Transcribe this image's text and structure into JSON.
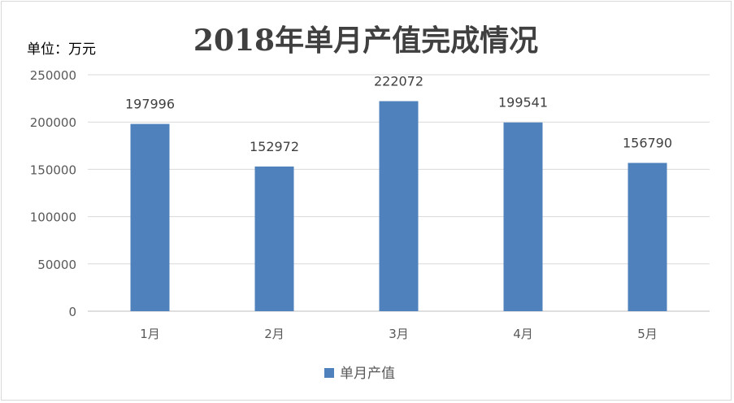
{
  "chart_data": {
    "type": "bar",
    "title": "2018年单月产值完成情况",
    "unit_label": "单位：万元",
    "categories": [
      "1月",
      "2月",
      "3月",
      "4月",
      "5月"
    ],
    "series": [
      {
        "name": "单月产值",
        "values": [
          197996,
          152972,
          222072,
          199541,
          156790
        ],
        "color": "#4f81bd"
      }
    ],
    "ylim": [
      0,
      250000
    ],
    "yticks": [
      "0",
      "50000",
      "100000",
      "150000",
      "200000",
      "250000"
    ],
    "grid": true,
    "legend_position": "bottom"
  }
}
